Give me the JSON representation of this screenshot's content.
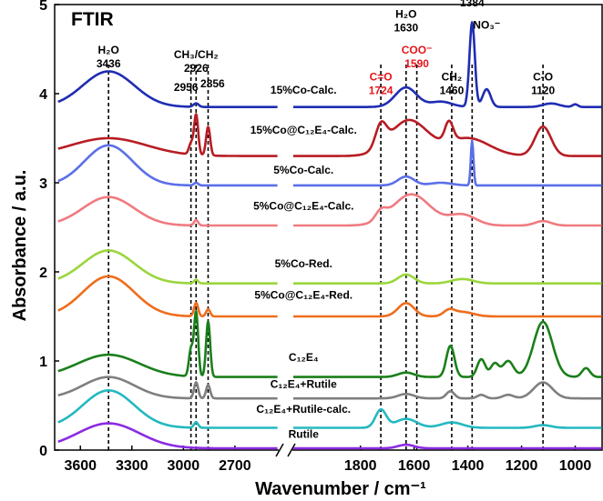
{
  "chart_data": {
    "type": "line",
    "title": "FTIR",
    "xlabel": "Wavenumber / cm⁻¹",
    "ylabel": "Absorbance / a.u.",
    "ylim": [
      0,
      5
    ],
    "x_segments": [
      {
        "xlim": [
          3750,
          2450
        ],
        "ticks": [
          3600,
          3300,
          3000,
          2700
        ],
        "tick_labels": [
          "3600",
          "3300",
          "3000",
          "2700"
        ]
      },
      {
        "xlim": [
          2050,
          900
        ],
        "ticks": [
          1800,
          1600,
          1400,
          1200,
          1000
        ],
        "tick_labels": [
          "1800",
          "1600",
          "1400",
          "1200",
          "1000"
        ]
      }
    ],
    "y_ticks": [
      0,
      1,
      2,
      3,
      4,
      5
    ],
    "y_tick_labels": [
      "0",
      "1",
      "2",
      "3",
      "4",
      "5"
    ],
    "reference_lines": [
      3436,
      2956,
      2926,
      2856,
      1724,
      1630,
      1590,
      1460,
      1384,
      1120
    ],
    "band_annotations": [
      {
        "lines": [
          "H₂O",
          "3436"
        ],
        "x": 3436,
        "y": 4.45,
        "color": "#000000"
      },
      {
        "lines": [
          "CH₃/CH₂",
          "2926"
        ],
        "x": 2926,
        "y": 4.4,
        "color": "#000000"
      },
      {
        "lines": [
          "2956"
        ],
        "x": 2985,
        "y": 4.03,
        "color": "#000000"
      },
      {
        "lines": [
          "2856"
        ],
        "x": 2830,
        "y": 4.07,
        "color": "#000000"
      },
      {
        "lines": [
          "C=O",
          "1724"
        ],
        "x": 1724,
        "y": 4.15,
        "color": "#E8141B"
      },
      {
        "lines": [
          "H₂O",
          "1630"
        ],
        "x": 1630,
        "y": 4.85,
        "color": "#000000"
      },
      {
        "lines": [
          "COO⁻",
          "1590"
        ],
        "x": 1590,
        "y": 4.45,
        "color": "#E8141B"
      },
      {
        "lines": [
          "CH₂",
          "1460"
        ],
        "x": 1460,
        "y": 4.15,
        "color": "#000000"
      },
      {
        "lines": [
          "1384"
        ],
        "x": 1384,
        "y": 4.98,
        "color": "#000000"
      },
      {
        "lines": [
          "NO₃⁻"
        ],
        "x": 1330,
        "y": 4.73,
        "color": "#000000"
      },
      {
        "lines": [
          "C-O",
          "1120"
        ],
        "x": 1120,
        "y": 4.15,
        "color": "#000000"
      }
    ],
    "series": [
      {
        "name": "15%Co-Calc.",
        "color": "#1F2DB2",
        "offset": 3.85,
        "label_x": 2300,
        "label_y": 4.0,
        "peaks": [
          [
            3436,
            0.4,
            150
          ],
          [
            2926,
            0.04,
            15
          ],
          [
            1630,
            0.22,
            40
          ],
          [
            1500,
            0.06,
            40
          ],
          [
            1384,
            0.95,
            10
          ],
          [
            1330,
            0.2,
            15
          ],
          [
            1090,
            0.04,
            30
          ],
          [
            1000,
            0.03,
            10
          ]
        ]
      },
      {
        "name": "15%Co@C₁₂E₄-Calc.",
        "color": "#B81C24",
        "offset": 3.3,
        "label_x": 2300,
        "label_y": 3.55,
        "peaks": [
          [
            3436,
            0.2,
            220
          ],
          [
            2956,
            0.12,
            12
          ],
          [
            2926,
            0.45,
            12
          ],
          [
            2856,
            0.32,
            12
          ],
          [
            1724,
            0.25,
            20
          ],
          [
            1620,
            0.4,
            70
          ],
          [
            1470,
            0.22,
            15
          ],
          [
            1400,
            0.2,
            80
          ],
          [
            1120,
            0.33,
            30
          ]
        ]
      },
      {
        "name": "5%Co-Calc.",
        "color": "#5B6FE8",
        "offset": 2.97,
        "label_x": 2300,
        "label_y": 3.1,
        "peaks": [
          [
            3436,
            0.45,
            140
          ],
          [
            2926,
            0.03,
            12
          ],
          [
            1630,
            0.1,
            30
          ],
          [
            1500,
            0.03,
            40
          ],
          [
            1384,
            0.5,
            5
          ]
        ]
      },
      {
        "name": "5%Co@C₁₂E₄-Calc.",
        "color": "#F07A80",
        "offset": 2.52,
        "label_x": 2300,
        "label_y": 2.7,
        "peaks": [
          [
            3436,
            0.32,
            150
          ],
          [
            2926,
            0.06,
            12
          ],
          [
            1724,
            0.1,
            20
          ],
          [
            1610,
            0.35,
            70
          ],
          [
            1420,
            0.12,
            50
          ],
          [
            1120,
            0.05,
            30
          ]
        ]
      },
      {
        "name": "5%Co-Red.",
        "color": "#9AD63C",
        "offset": 1.87,
        "label_x": 2300,
        "label_y": 2.05,
        "peaks": [
          [
            3436,
            0.37,
            150
          ],
          [
            2926,
            0.04,
            12
          ],
          [
            1630,
            0.1,
            30
          ],
          [
            1420,
            0.05,
            40
          ]
        ]
      },
      {
        "name": "5%Co@C₁₂E₄-Red.",
        "color": "#EF6D1C",
        "offset": 1.5,
        "label_x": 2300,
        "label_y": 1.7,
        "peaks": [
          [
            3436,
            0.45,
            150
          ],
          [
            2926,
            0.15,
            12
          ],
          [
            2856,
            0.08,
            12
          ],
          [
            1630,
            0.15,
            30
          ],
          [
            1470,
            0.06,
            20
          ],
          [
            1420,
            0.05,
            40
          ]
        ]
      },
      {
        "name": "C₁₂E₄",
        "color": "#1A7F1A",
        "offset": 0.82,
        "label_x": 2300,
        "label_y": 1.0,
        "peaks": [
          [
            3436,
            0.25,
            180
          ],
          [
            2956,
            0.3,
            12
          ],
          [
            2926,
            0.72,
            12
          ],
          [
            2856,
            0.62,
            12
          ],
          [
            1630,
            0.05,
            30
          ],
          [
            1465,
            0.35,
            15
          ],
          [
            1350,
            0.2,
            15
          ],
          [
            1300,
            0.15,
            15
          ],
          [
            1250,
            0.18,
            20
          ],
          [
            1120,
            0.62,
            35
          ],
          [
            960,
            0.1,
            15
          ]
        ]
      },
      {
        "name": "C₁₂E₄+Rutile",
        "color": "#7F7F7F",
        "offset": 0.58,
        "label_x": 2300,
        "label_y": 0.7,
        "peaks": [
          [
            3436,
            0.24,
            150
          ],
          [
            2926,
            0.18,
            12
          ],
          [
            2856,
            0.15,
            12
          ],
          [
            1630,
            0.05,
            30
          ],
          [
            1465,
            0.08,
            15
          ],
          [
            1350,
            0.04,
            15
          ],
          [
            1250,
            0.04,
            20
          ],
          [
            1120,
            0.18,
            35
          ]
        ]
      },
      {
        "name": "C₁₂E₄+Rutile-calc.",
        "color": "#24B8C0",
        "offset": 0.25,
        "label_x": 2300,
        "label_y": 0.42,
        "peaks": [
          [
            3436,
            0.42,
            150
          ],
          [
            2926,
            0.06,
            12
          ],
          [
            1724,
            0.2,
            20
          ],
          [
            1630,
            0.1,
            40
          ],
          [
            1460,
            0.06,
            40
          ],
          [
            1120,
            0.03,
            30
          ]
        ]
      },
      {
        "name": "Rutile",
        "color": "#8B2BE2",
        "offset": 0.02,
        "label_x": 2300,
        "label_y": 0.14,
        "peaks": [
          [
            3436,
            0.28,
            180
          ],
          [
            1630,
            0.04,
            30
          ]
        ]
      }
    ]
  }
}
